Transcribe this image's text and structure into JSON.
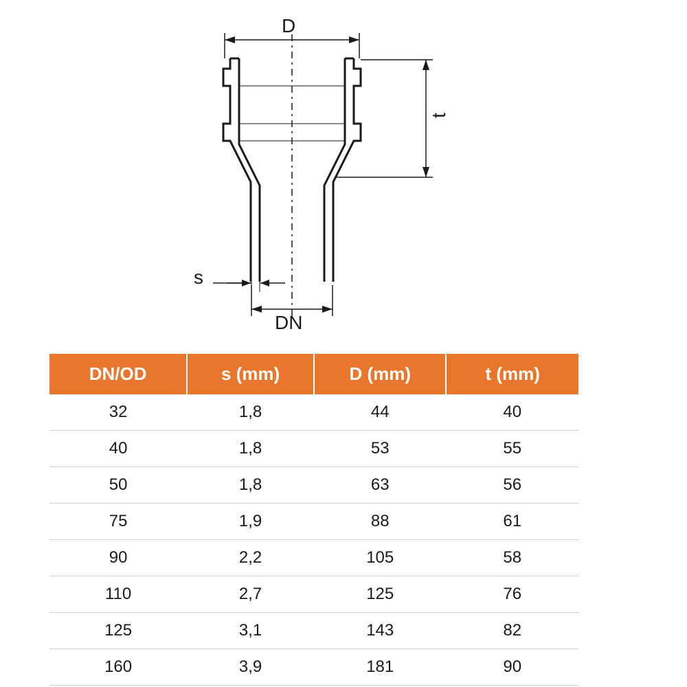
{
  "diagram": {
    "labels": {
      "D": "D",
      "t": "t",
      "s": "s",
      "DN": "DN"
    },
    "stroke_color": "#1a1a1a",
    "stroke_width_main": 3,
    "stroke_width_dim": 2,
    "centerline_dash": "8 6 2 6"
  },
  "table": {
    "header_bg": "#e8762c",
    "header_fg": "#ffffff",
    "row_border": "#cfcfcf",
    "cell_fg": "#1a1a1a",
    "columns": [
      "DN/OD",
      "s (mm)",
      "D (mm)",
      "t (mm)"
    ],
    "rows": [
      [
        "32",
        "1,8",
        "44",
        "40"
      ],
      [
        "40",
        "1,8",
        "53",
        "55"
      ],
      [
        "50",
        "1,8",
        "63",
        "56"
      ],
      [
        "75",
        "1,9",
        "88",
        "61"
      ],
      [
        "90",
        "2,2",
        "105",
        "58"
      ],
      [
        "110",
        "2,7",
        "125",
        "76"
      ],
      [
        "125",
        "3,1",
        "143",
        "82"
      ],
      [
        "160",
        "3,9",
        "181",
        "90"
      ]
    ]
  }
}
